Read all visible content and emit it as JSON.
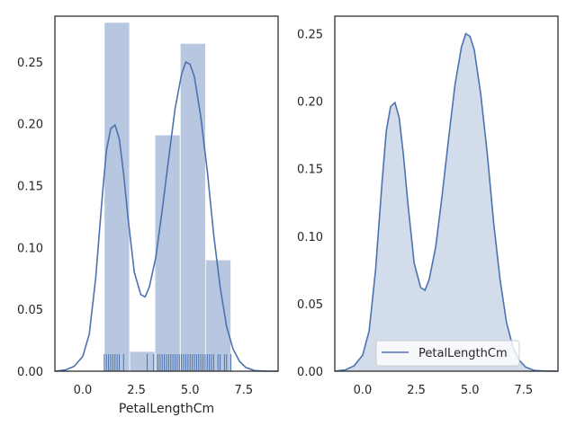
{
  "colors": {
    "line": "#4c72b0",
    "hist_fill": "#4c72b0",
    "kde_fill": "#4c72b0",
    "axes_edge": "#262626",
    "text": "#262626"
  },
  "chart_data": [
    {
      "type": "bar",
      "subtype": "histogram_with_kde_and_rug",
      "title": "",
      "xlabel": "PetalLengthCm",
      "ylabel": "",
      "xlim": [
        -1.3,
        9.1
      ],
      "ylim": [
        0,
        0.287
      ],
      "xticks": [
        0.0,
        2.5,
        5.0,
        7.5
      ],
      "xtick_labels": [
        "0.0",
        "2.5",
        "5.0",
        "7.5"
      ],
      "yticks": [
        0.0,
        0.05,
        0.1,
        0.15,
        0.2,
        0.25
      ],
      "ytick_labels": [
        "0.00",
        "0.05",
        "0.10",
        "0.15",
        "0.20",
        "0.25"
      ],
      "grid": false,
      "legend": null,
      "bins": [
        {
          "x0": 1.0,
          "x1": 2.18,
          "value": 0.282
        },
        {
          "x0": 2.18,
          "x1": 3.36,
          "value": 0.016
        },
        {
          "x0": 3.36,
          "x1": 4.54,
          "value": 0.191
        },
        {
          "x0": 4.54,
          "x1": 5.72,
          "value": 0.265
        },
        {
          "x0": 5.72,
          "x1": 6.9,
          "value": 0.09
        }
      ],
      "kde": {
        "x": [
          -1.3,
          -0.8,
          -0.4,
          0.0,
          0.3,
          0.6,
          0.9,
          1.1,
          1.3,
          1.5,
          1.7,
          1.9,
          2.1,
          2.4,
          2.7,
          2.9,
          3.1,
          3.4,
          3.7,
          4.0,
          4.3,
          4.6,
          4.8,
          5.0,
          5.2,
          5.5,
          5.8,
          6.1,
          6.4,
          6.7,
          7.0,
          7.3,
          7.6,
          8.0,
          8.5,
          9.1
        ],
        "y": [
          0.0,
          0.001,
          0.004,
          0.012,
          0.03,
          0.075,
          0.14,
          0.178,
          0.196,
          0.199,
          0.188,
          0.16,
          0.125,
          0.08,
          0.062,
          0.06,
          0.068,
          0.092,
          0.13,
          0.172,
          0.212,
          0.24,
          0.25,
          0.248,
          0.238,
          0.205,
          0.162,
          0.11,
          0.068,
          0.036,
          0.018,
          0.008,
          0.003,
          0.0005,
          0.0001,
          0.0
        ]
      },
      "rug": [
        1.0,
        1.1,
        1.2,
        1.3,
        1.4,
        1.5,
        1.6,
        1.7,
        1.9,
        3.0,
        3.3,
        3.5,
        3.6,
        3.7,
        3.8,
        3.9,
        4.0,
        4.1,
        4.2,
        4.3,
        4.4,
        4.5,
        4.6,
        4.7,
        4.8,
        4.9,
        5.0,
        5.1,
        5.2,
        5.3,
        5.4,
        5.5,
        5.6,
        5.7,
        5.8,
        5.9,
        6.0,
        6.1,
        6.3,
        6.4,
        6.6,
        6.7,
        6.9
      ]
    },
    {
      "type": "area",
      "subtype": "kde_shaded",
      "title": "",
      "xlabel": "",
      "ylabel": "",
      "xlim": [
        -1.3,
        9.1
      ],
      "ylim": [
        0,
        0.263
      ],
      "xticks": [
        0.0,
        2.5,
        5.0,
        7.5
      ],
      "xtick_labels": [
        "0.0",
        "2.5",
        "5.0",
        "7.5"
      ],
      "yticks": [
        0.0,
        0.05,
        0.1,
        0.15,
        0.2,
        0.25
      ],
      "ytick_labels": [
        "0.00",
        "0.05",
        "0.10",
        "0.15",
        "0.20",
        "0.25"
      ],
      "grid": false,
      "legend": {
        "placement": "lower-right",
        "entries": [
          "PetalLengthCm"
        ]
      },
      "series": [
        {
          "name": "PetalLengthCm",
          "x": [
            -1.3,
            -0.8,
            -0.4,
            0.0,
            0.3,
            0.6,
            0.9,
            1.1,
            1.3,
            1.5,
            1.7,
            1.9,
            2.1,
            2.4,
            2.7,
            2.9,
            3.1,
            3.4,
            3.7,
            4.0,
            4.3,
            4.6,
            4.8,
            5.0,
            5.2,
            5.5,
            5.8,
            6.1,
            6.4,
            6.7,
            7.0,
            7.3,
            7.6,
            8.0,
            8.5,
            9.1
          ],
          "y": [
            0.0,
            0.001,
            0.004,
            0.012,
            0.03,
            0.075,
            0.14,
            0.178,
            0.196,
            0.199,
            0.188,
            0.16,
            0.125,
            0.08,
            0.062,
            0.06,
            0.068,
            0.092,
            0.13,
            0.172,
            0.212,
            0.24,
            0.25,
            0.248,
            0.238,
            0.205,
            0.162,
            0.11,
            0.068,
            0.036,
            0.018,
            0.008,
            0.003,
            0.0005,
            0.0001,
            0.0
          ]
        }
      ]
    }
  ]
}
